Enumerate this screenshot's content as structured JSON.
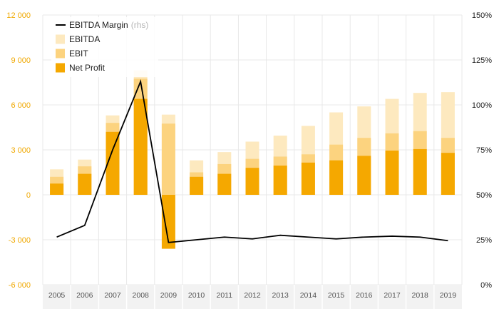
{
  "chart_data": {
    "type": "bar",
    "categories": [
      "2005",
      "2006",
      "2007",
      "2008",
      "2009",
      "2010",
      "2011",
      "2012",
      "2013",
      "2014",
      "2015",
      "2016",
      "2017",
      "2018",
      "2019"
    ],
    "series": [
      {
        "name": "EBITDA",
        "kind": "bar",
        "axis": "left",
        "color": "#fde9bf",
        "values": [
          1700,
          2350,
          5300,
          8300,
          5350,
          2300,
          2850,
          3550,
          3950,
          4600,
          5500,
          5900,
          6400,
          6800,
          6850
        ]
      },
      {
        "name": "EBIT",
        "kind": "bar",
        "axis": "left",
        "color": "#fcd37f",
        "values": [
          1200,
          1900,
          4800,
          7750,
          4750,
          1500,
          2050,
          2400,
          2550,
          2700,
          3350,
          3800,
          4100,
          4250,
          3800
        ]
      },
      {
        "name": "Net Profit",
        "kind": "bar",
        "axis": "left",
        "color": "#f5a800",
        "values": [
          750,
          1400,
          4200,
          6400,
          -3600,
          1200,
          1400,
          1800,
          1950,
          2150,
          2300,
          2600,
          2950,
          3050,
          2800
        ]
      },
      {
        "name": "EBITDA Margin",
        "kind": "line",
        "axis": "right",
        "color": "#000000",
        "values": [
          26.5,
          33,
          75,
          113,
          23.5,
          25,
          26.5,
          25.5,
          27.5,
          26.5,
          25.5,
          26.5,
          27,
          26.5,
          24.5
        ]
      }
    ],
    "title": "",
    "xlabel": "",
    "ylabel": "",
    "ylim": [
      -6000,
      12000
    ],
    "y2lim": [
      0,
      150
    ],
    "y_ticks": [
      12000,
      9000,
      6000,
      3000,
      0,
      -3000,
      -6000
    ],
    "y_tick_labels": [
      "12 000",
      "9 000",
      "6 000",
      "3 000",
      "0",
      "-3 000",
      "-6 000"
    ],
    "y2_ticks": [
      150,
      125,
      100,
      75,
      50,
      25,
      0
    ],
    "y2_tick_labels": [
      "150%",
      "125%",
      "100%",
      "75%",
      "50%",
      "25%",
      "0%"
    ],
    "legend": {
      "position": "top-left",
      "items": [
        {
          "label": "EBITDA Margin",
          "note": "(rhs)",
          "kind": "line",
          "color": "#000000"
        },
        {
          "label": "EBITDA",
          "kind": "bar",
          "color": "#fde9bf"
        },
        {
          "label": "EBIT",
          "kind": "bar",
          "color": "#fcd37f"
        },
        {
          "label": "Net Profit",
          "kind": "bar",
          "color": "#f5a800"
        }
      ]
    },
    "colors": {
      "left_tick": "#f0a800",
      "grid": "#e8e8e8",
      "axis_strip": "#f2f2f2"
    }
  }
}
